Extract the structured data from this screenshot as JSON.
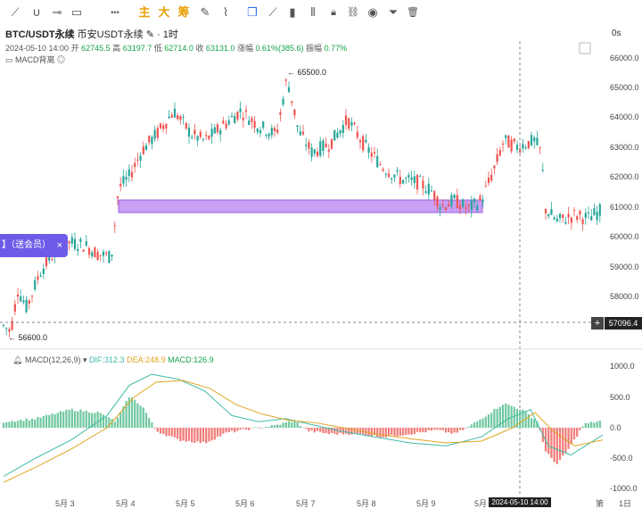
{
  "toolbar": {
    "tools": [
      {
        "name": "trend-line-icon",
        "glyph": "⟋"
      },
      {
        "name": "curve-icon",
        "glyph": "∪"
      },
      {
        "name": "horizontal-ray-icon",
        "glyph": "⊸"
      },
      {
        "name": "rectangle-icon",
        "glyph": "▭"
      },
      {
        "name": "more-icon",
        "glyph": "•••"
      }
    ],
    "cn_buttons": [
      "主",
      "大",
      "筹"
    ],
    "right_tools": [
      {
        "name": "note-icon",
        "glyph": "✎"
      },
      {
        "name": "pattern-icon",
        "glyph": "⌇"
      },
      {
        "name": "magnet-icon",
        "glyph": "⌒"
      },
      {
        "name": "cursor-icon",
        "glyph": "➤"
      },
      {
        "name": "layers-icon",
        "glyph": "❐"
      },
      {
        "name": "ruler-icon",
        "glyph": "⟋"
      },
      {
        "name": "volume-icon",
        "glyph": "▮"
      },
      {
        "name": "candle-icon",
        "glyph": "⫴"
      },
      {
        "name": "lock-icon",
        "glyph": "🔒︎"
      },
      {
        "name": "link-icon",
        "glyph": "⛓︎"
      },
      {
        "name": "eye-icon",
        "glyph": "◉"
      },
      {
        "name": "filter-icon",
        "glyph": "⏷"
      },
      {
        "name": "trash-icon",
        "glyph": "🗑︎"
      }
    ]
  },
  "header": {
    "symbol": "BTC/USDT永续",
    "exchange": "币安USDT永续",
    "interval": "1时",
    "countdown": "0s",
    "date": "2024-05-10 14:00",
    "open_label": "开",
    "open": "62745.5",
    "high_label": "高",
    "high": "63197.7",
    "low_label": "低",
    "low": "62714.0",
    "close_label": "收",
    "close": "63131.0",
    "change_label": "涨幅",
    "change": "0.61%(385.6)",
    "amp_label": "振幅",
    "amp": "0.77%",
    "indicator": "MACD背离"
  },
  "macd_legend": {
    "name": "MACD(12,26,9)",
    "dif": "DIF:312.3",
    "dea": "DEA:248.9",
    "macd": "MACD:126.9"
  },
  "promo": {
    "text": "】（送会员）",
    "close": "×"
  },
  "price_axis": [
    "66000.0",
    "65000.0",
    "64000.0",
    "63000.0",
    "62000.0",
    "61000.0",
    "60000.0",
    "59000.0",
    "58000.0"
  ],
  "macd_axis": [
    "1000.0",
    "500.0",
    "0.0",
    "-500.0",
    "-1000.0"
  ],
  "crosshair": {
    "price": "57096.4",
    "plus": "+",
    "time": "2024-05-10 14:00"
  },
  "time_axis": [
    "5月 3",
    "5月 4",
    "5月 5",
    "5月 6",
    "5月 7",
    "5月 8",
    "5月 9",
    "5月",
    "第",
    "1日"
  ],
  "annotations": {
    "high": "← 65500.0",
    "low": "← 56600.0"
  },
  "colors": {
    "up": "#26a69a",
    "down": "#ef5350",
    "zone": "#c9a0f5",
    "dif": "#3dbba7",
    "dea": "#e0a520",
    "accent": "#e8a10a"
  }
}
